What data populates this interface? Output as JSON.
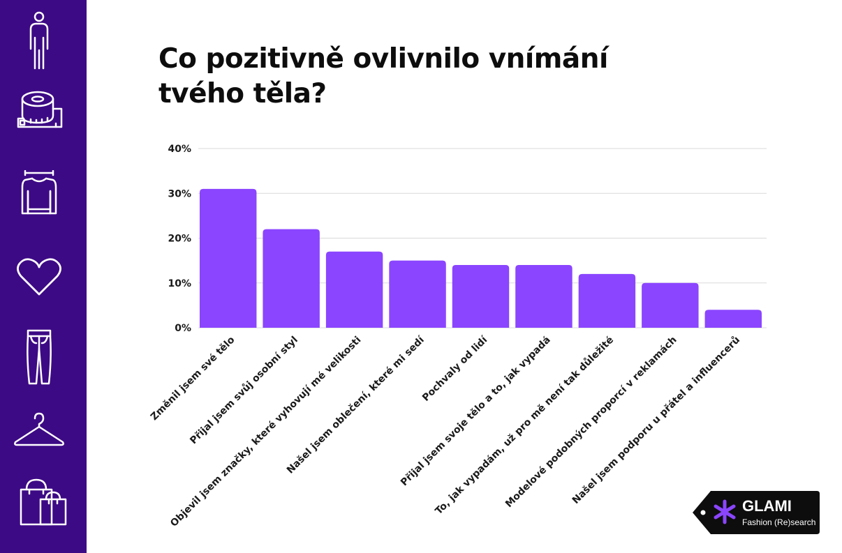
{
  "title": "Co pozitivně ovlivnilo vnímání tvého těla?",
  "colors": {
    "sidebar": "#3d0a85",
    "bar": "#8b45ff",
    "logo_bg": "#0d0d0d",
    "logo_accent": "#8b45ff"
  },
  "sidebar_icons": [
    "person-icon",
    "measuring-tape-icon",
    "sweater-icon",
    "heart-icon",
    "jeans-icon",
    "hanger-icon",
    "shopping-bags-icon"
  ],
  "logo": {
    "name": "GLAMI",
    "tagline": "Fashion (Re)search"
  },
  "chart_data": {
    "type": "bar",
    "categories": [
      "Změnil jsem své tělo",
      "Přijal jsem svůj osobní styl",
      "Objevil jsem značky, které vyhovují mé velikosti",
      "Našel jsem oblečení, které mi sedí",
      "Pochvaly od lidí",
      "Přijal jsem svoje tělo a to, jak vypadá",
      "To, jak vypadám, už pro mě není tak důležité",
      "Modelové podobných proporcí v reklamách",
      "Našel jsem podporu u přátel a influencerů"
    ],
    "values": [
      31,
      22,
      17,
      15,
      14,
      14,
      12,
      10,
      4
    ],
    "ylim": [
      0,
      40
    ],
    "yticks": [
      "0%",
      "10%",
      "20%",
      "30%",
      "40%"
    ],
    "grid": true,
    "xlabel": "",
    "ylabel": ""
  }
}
